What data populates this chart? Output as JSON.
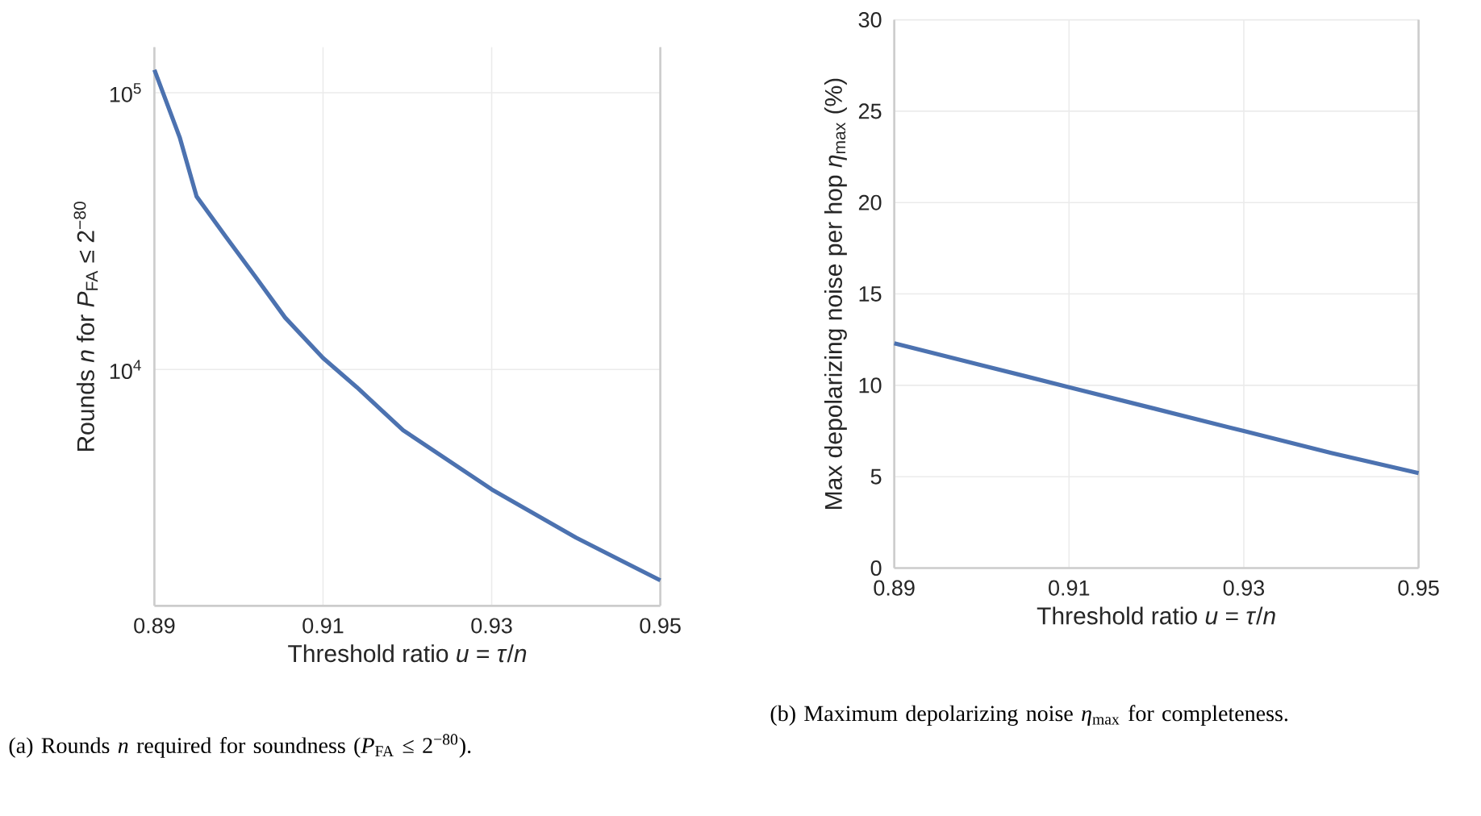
{
  "chart_data": [
    {
      "type": "line",
      "x": [
        0.89,
        0.893,
        0.895,
        0.8985,
        0.902,
        0.9055,
        0.91,
        0.914,
        0.9195,
        0.93,
        0.94,
        0.95
      ],
      "values": [
        121000,
        69000,
        42200,
        30100,
        21600,
        15400,
        11000,
        8630,
        6030,
        3690,
        2470,
        1730
      ],
      "color": "#4c72b0",
      "log": "y",
      "grid": true,
      "xlim": [
        0.89,
        0.95
      ],
      "ylim": [
        1400,
        146000
      ],
      "xticks": [
        0.89,
        0.91,
        0.93,
        0.95
      ],
      "yticks": [
        {
          "value": 10000,
          "label": "10$^{4}$"
        },
        {
          "value": 100000,
          "label": "10$^{5}$"
        }
      ],
      "xlabel": "Threshold ratio *u* = *τ*/*n*",
      "ylabel": "Rounds *n* for *P*$_{FA}$ ≤ 2$^{−80}$",
      "annotations": [
        "(a) Rounds *n* required for soundness (*P*$_{FA}$ ≤ 2$^{−80}$)."
      ]
    },
    {
      "type": "line",
      "x": [
        0.89,
        0.9,
        0.91,
        0.92,
        0.93,
        0.94,
        0.95
      ],
      "values": [
        12.3,
        11.1,
        9.9,
        8.7,
        7.5,
        6.3,
        5.2
      ],
      "color": "#4c72b0",
      "grid": true,
      "xlim": [
        0.89,
        0.95
      ],
      "ylim": [
        0,
        30
      ],
      "xticks": [
        0.89,
        0.91,
        0.93,
        0.95
      ],
      "yticks": [
        0,
        5,
        10,
        15,
        20,
        25,
        30
      ],
      "xlabel": "Threshold ratio *u* = *τ*/*n*",
      "ylabel": "Max depolarizing noise per hop *η*$_{max}$ (%)",
      "annotations": [
        "(b) Maximum depolarizing noise *η*$_{max}$ for completeness."
      ]
    }
  ]
}
